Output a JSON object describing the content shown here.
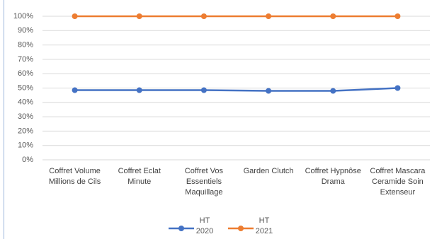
{
  "chart_data": {
    "type": "line",
    "categories": [
      "Coffret Volume Millions de Cils",
      "Coffret Eclat Minute",
      "Coffret Vos Essentiels Maquillage",
      "Garden Clutch",
      "Coffret Hypnôse Drama",
      "Coffret Mascara Ceramide Soin Extenseur"
    ],
    "series": [
      {
        "name": "HT 2020",
        "color": "#4472c4",
        "values": [
          48.5,
          48.5,
          48.5,
          48,
          48,
          50
        ]
      },
      {
        "name": "HT 2021",
        "color": "#ed7d31",
        "values": [
          100,
          100,
          100,
          100,
          100,
          100
        ]
      }
    ],
    "ylim": [
      0,
      100
    ],
    "yticks": [
      {
        "value": 0,
        "label": "0%"
      },
      {
        "value": 10,
        "label": "10%"
      },
      {
        "value": 20,
        "label": "20%"
      },
      {
        "value": 30,
        "label": "30%"
      },
      {
        "value": 40,
        "label": "40%"
      },
      {
        "value": 50,
        "label": "50%"
      },
      {
        "value": 60,
        "label": "60%"
      },
      {
        "value": 70,
        "label": "70%"
      },
      {
        "value": 80,
        "label": "80%"
      },
      {
        "value": 90,
        "label": "90%"
      },
      {
        "value": 100,
        "label": "100%"
      }
    ],
    "grid": true
  }
}
